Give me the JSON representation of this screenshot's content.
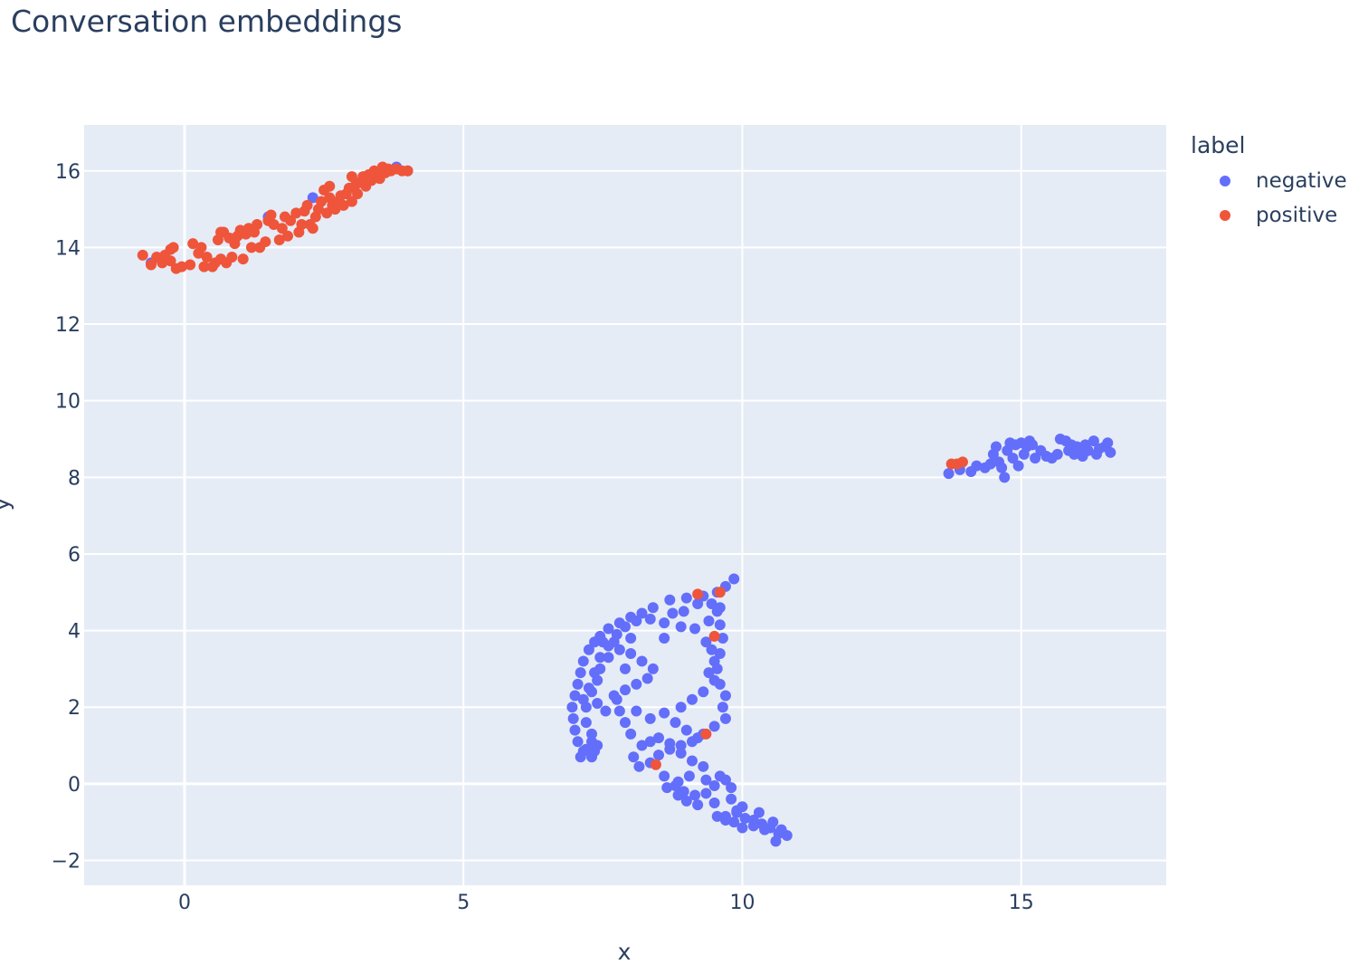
{
  "chart_data": {
    "type": "scatter",
    "title": "Conversation embeddings",
    "xlabel": "x",
    "ylabel": "y",
    "xlim": [
      -1.8,
      17.6
    ],
    "ylim": [
      -2.65,
      17.2
    ],
    "xticks": [
      0,
      5,
      10,
      15
    ],
    "yticks": [
      -2,
      0,
      2,
      4,
      6,
      8,
      10,
      12,
      14,
      16
    ],
    "ytick_labels": [
      "−2",
      "0",
      "2",
      "4",
      "6",
      "8",
      "10",
      "12",
      "14",
      "16"
    ],
    "legend_title": "label",
    "legend_position": "right",
    "plot_background": "#e5ecf6",
    "series": [
      {
        "name": "negative",
        "color": "#636efa",
        "points": [
          [
            -0.6,
            13.6
          ],
          [
            1.5,
            14.8
          ],
          [
            2.3,
            15.3
          ],
          [
            3.8,
            16.1
          ],
          [
            4.0,
            16.0
          ],
          [
            13.7,
            8.1
          ],
          [
            13.9,
            8.2
          ],
          [
            14.1,
            8.15
          ],
          [
            14.2,
            8.3
          ],
          [
            14.35,
            8.25
          ],
          [
            14.45,
            8.35
          ],
          [
            14.5,
            8.6
          ],
          [
            14.55,
            8.8
          ],
          [
            14.6,
            8.4
          ],
          [
            14.65,
            8.25
          ],
          [
            14.7,
            8.0
          ],
          [
            14.75,
            8.7
          ],
          [
            14.8,
            8.9
          ],
          [
            14.85,
            8.5
          ],
          [
            14.9,
            8.85
          ],
          [
            14.95,
            8.3
          ],
          [
            15.0,
            8.9
          ],
          [
            15.05,
            8.6
          ],
          [
            15.1,
            8.8
          ],
          [
            15.15,
            8.95
          ],
          [
            15.2,
            8.85
          ],
          [
            15.25,
            8.5
          ],
          [
            15.35,
            8.7
          ],
          [
            15.45,
            8.55
          ],
          [
            15.55,
            8.5
          ],
          [
            15.65,
            8.6
          ],
          [
            15.7,
            9.0
          ],
          [
            15.8,
            8.95
          ],
          [
            15.85,
            8.7
          ],
          [
            15.9,
            8.85
          ],
          [
            15.95,
            8.6
          ],
          [
            16.0,
            8.8
          ],
          [
            16.05,
            8.7
          ],
          [
            16.1,
            8.55
          ],
          [
            16.15,
            8.85
          ],
          [
            16.2,
            8.7
          ],
          [
            16.3,
            8.95
          ],
          [
            16.35,
            8.6
          ],
          [
            16.4,
            8.75
          ],
          [
            16.5,
            8.8
          ],
          [
            16.55,
            8.9
          ],
          [
            16.6,
            8.65
          ],
          [
            9.85,
            5.35
          ],
          [
            9.7,
            5.15
          ],
          [
            9.55,
            5.0
          ],
          [
            9.3,
            4.9
          ],
          [
            9.0,
            4.85
          ],
          [
            8.7,
            4.8
          ],
          [
            8.4,
            4.6
          ],
          [
            8.2,
            4.45
          ],
          [
            8.0,
            4.35
          ],
          [
            7.8,
            4.2
          ],
          [
            7.6,
            4.05
          ],
          [
            7.45,
            3.85
          ],
          [
            7.35,
            3.7
          ],
          [
            7.25,
            3.5
          ],
          [
            7.15,
            3.2
          ],
          [
            7.1,
            2.9
          ],
          [
            7.05,
            2.6
          ],
          [
            7.0,
            2.3
          ],
          [
            6.95,
            2.0
          ],
          [
            6.97,
            1.7
          ],
          [
            7.0,
            1.4
          ],
          [
            7.05,
            1.1
          ],
          [
            7.15,
            0.85
          ],
          [
            7.3,
            0.7
          ],
          [
            7.4,
            1.0
          ],
          [
            7.3,
            1.3
          ],
          [
            7.2,
            1.6
          ],
          [
            7.15,
            2.2
          ],
          [
            7.25,
            2.5
          ],
          [
            7.35,
            2.9
          ],
          [
            7.45,
            3.3
          ],
          [
            7.6,
            3.6
          ],
          [
            7.75,
            3.9
          ],
          [
            7.9,
            4.1
          ],
          [
            8.1,
            4.25
          ],
          [
            8.35,
            4.3
          ],
          [
            8.6,
            4.2
          ],
          [
            8.9,
            4.1
          ],
          [
            9.15,
            4.05
          ],
          [
            9.4,
            4.25
          ],
          [
            9.55,
            4.5
          ],
          [
            9.6,
            4.15
          ],
          [
            9.65,
            3.8
          ],
          [
            9.6,
            3.4
          ],
          [
            9.55,
            3.0
          ],
          [
            9.6,
            2.6
          ],
          [
            9.7,
            2.3
          ],
          [
            9.65,
            2.0
          ],
          [
            9.7,
            1.7
          ],
          [
            9.5,
            1.5
          ],
          [
            9.3,
            1.3
          ],
          [
            9.1,
            1.1
          ],
          [
            8.9,
            1.0
          ],
          [
            8.7,
            0.9
          ],
          [
            8.5,
            0.75
          ],
          [
            8.35,
            0.55
          ],
          [
            8.15,
            0.45
          ],
          [
            8.05,
            0.7
          ],
          [
            8.2,
            1.0
          ],
          [
            8.0,
            1.3
          ],
          [
            7.9,
            1.6
          ],
          [
            7.8,
            1.9
          ],
          [
            7.75,
            2.2
          ],
          [
            7.9,
            2.45
          ],
          [
            8.1,
            2.6
          ],
          [
            8.3,
            2.75
          ],
          [
            8.4,
            3.0
          ],
          [
            8.2,
            3.2
          ],
          [
            8.0,
            3.4
          ],
          [
            7.8,
            3.5
          ],
          [
            7.6,
            3.3
          ],
          [
            7.45,
            3.0
          ],
          [
            7.4,
            2.7
          ],
          [
            7.3,
            2.4
          ],
          [
            7.2,
            2.0
          ],
          [
            7.4,
            2.1
          ],
          [
            7.55,
            1.9
          ],
          [
            7.7,
            2.3
          ],
          [
            8.5,
            1.2
          ],
          [
            8.7,
            1.05
          ],
          [
            8.9,
            0.8
          ],
          [
            9.1,
            0.6
          ],
          [
            9.3,
            0.45
          ],
          [
            9.05,
            0.2
          ],
          [
            8.85,
            0.05
          ],
          [
            8.6,
            0.2
          ],
          [
            8.65,
            -0.1
          ],
          [
            8.85,
            -0.3
          ],
          [
            9.0,
            -0.45
          ],
          [
            9.2,
            -0.55
          ],
          [
            9.35,
            -0.25
          ],
          [
            9.5,
            -0.05
          ],
          [
            9.7,
            0.1
          ],
          [
            9.8,
            -0.1
          ],
          [
            9.5,
            -0.5
          ],
          [
            9.7,
            -0.85
          ],
          [
            9.9,
            -0.75
          ],
          [
            10.05,
            -0.9
          ],
          [
            10.2,
            -0.95
          ],
          [
            10.35,
            -1.05
          ],
          [
            10.5,
            -1.15
          ],
          [
            10.65,
            -1.3
          ],
          [
            10.8,
            -1.35
          ],
          [
            10.6,
            -1.5
          ],
          [
            10.4,
            -1.2
          ],
          [
            10.2,
            -1.1
          ],
          [
            10.0,
            -1.15
          ],
          [
            9.85,
            -1.0
          ],
          [
            9.7,
            -0.95
          ],
          [
            9.55,
            -0.85
          ],
          [
            9.9,
            -0.7
          ],
          [
            8.75,
            4.45
          ],
          [
            8.95,
            4.5
          ],
          [
            9.2,
            4.7
          ],
          [
            9.45,
            4.7
          ],
          [
            9.6,
            4.6
          ],
          [
            9.35,
            3.7
          ],
          [
            9.45,
            3.5
          ],
          [
            9.5,
            3.2
          ],
          [
            9.4,
            2.9
          ],
          [
            9.5,
            2.7
          ],
          [
            9.3,
            2.4
          ],
          [
            9.1,
            2.2
          ],
          [
            8.9,
            2.0
          ],
          [
            8.6,
            1.85
          ],
          [
            8.35,
            1.7
          ],
          [
            8.1,
            1.9
          ],
          [
            7.7,
            3.7
          ],
          [
            7.5,
            3.7
          ],
          [
            7.3,
            1.1
          ],
          [
            7.2,
            0.9
          ],
          [
            7.1,
            0.7
          ],
          [
            7.35,
            0.85
          ],
          [
            8.8,
            1.6
          ],
          [
            9.0,
            1.4
          ],
          [
            9.2,
            1.2
          ],
          [
            8.6,
            3.8
          ],
          [
            8.0,
            3.8
          ],
          [
            7.9,
            3.0
          ],
          [
            8.35,
            1.1
          ],
          [
            8.8,
            -0.05
          ],
          [
            8.95,
            -0.2
          ],
          [
            9.15,
            -0.3
          ],
          [
            9.35,
            0.1
          ],
          [
            9.6,
            0.2
          ],
          [
            9.8,
            -0.4
          ],
          [
            10.0,
            -0.6
          ],
          [
            10.3,
            -0.75
          ],
          [
            10.55,
            -1.0
          ],
          [
            10.7,
            -1.2
          ]
        ]
      },
      {
        "name": "positive",
        "color": "#ef553b",
        "points": [
          [
            -0.75,
            13.8
          ],
          [
            -0.6,
            13.55
          ],
          [
            -0.5,
            13.75
          ],
          [
            -0.4,
            13.6
          ],
          [
            -0.35,
            13.8
          ],
          [
            -0.25,
            13.65
          ],
          [
            -0.15,
            13.45
          ],
          [
            -0.05,
            13.5
          ],
          [
            -0.25,
            13.95
          ],
          [
            -0.2,
            14.0
          ],
          [
            0.15,
            14.1
          ],
          [
            0.25,
            13.85
          ],
          [
            0.3,
            14.0
          ],
          [
            0.4,
            13.75
          ],
          [
            0.5,
            13.5
          ],
          [
            0.55,
            13.6
          ],
          [
            0.65,
            13.7
          ],
          [
            0.75,
            13.6
          ],
          [
            0.85,
            13.75
          ],
          [
            0.6,
            14.2
          ],
          [
            0.7,
            14.4
          ],
          [
            0.8,
            14.25
          ],
          [
            0.65,
            14.4
          ],
          [
            0.9,
            14.1
          ],
          [
            0.95,
            14.3
          ],
          [
            1.05,
            13.7
          ],
          [
            1.0,
            14.45
          ],
          [
            1.1,
            14.35
          ],
          [
            1.15,
            14.5
          ],
          [
            1.25,
            14.4
          ],
          [
            1.3,
            14.6
          ],
          [
            1.35,
            14.0
          ],
          [
            1.45,
            14.15
          ],
          [
            1.5,
            14.7
          ],
          [
            1.55,
            14.85
          ],
          [
            1.6,
            14.6
          ],
          [
            1.7,
            14.2
          ],
          [
            1.75,
            14.5
          ],
          [
            1.8,
            14.8
          ],
          [
            1.85,
            14.3
          ],
          [
            1.9,
            14.7
          ],
          [
            2.0,
            14.9
          ],
          [
            2.05,
            14.4
          ],
          [
            2.1,
            14.6
          ],
          [
            2.15,
            14.95
          ],
          [
            2.2,
            15.1
          ],
          [
            2.25,
            14.6
          ],
          [
            2.35,
            14.8
          ],
          [
            2.4,
            15.0
          ],
          [
            2.45,
            15.2
          ],
          [
            2.5,
            15.5
          ],
          [
            2.55,
            14.9
          ],
          [
            2.6,
            15.3
          ],
          [
            2.65,
            15.1
          ],
          [
            2.7,
            15.0
          ],
          [
            2.75,
            15.2
          ],
          [
            2.8,
            15.35
          ],
          [
            2.85,
            15.1
          ],
          [
            2.9,
            15.4
          ],
          [
            2.95,
            15.55
          ],
          [
            3.0,
            15.2
          ],
          [
            3.05,
            15.6
          ],
          [
            3.1,
            15.4
          ],
          [
            3.15,
            15.7
          ],
          [
            3.2,
            15.85
          ],
          [
            3.25,
            15.6
          ],
          [
            3.3,
            15.9
          ],
          [
            3.35,
            15.75
          ],
          [
            3.4,
            16.0
          ],
          [
            3.45,
            15.9
          ],
          [
            3.5,
            15.8
          ],
          [
            3.55,
            16.1
          ],
          [
            3.6,
            15.95
          ],
          [
            3.65,
            16.05
          ],
          [
            3.7,
            16.0
          ],
          [
            3.8,
            16.05
          ],
          [
            3.9,
            16.0
          ],
          [
            4.0,
            16.0
          ],
          [
            0.35,
            13.5
          ],
          [
            0.1,
            13.55
          ],
          [
            1.2,
            14.0
          ],
          [
            2.3,
            14.5
          ],
          [
            2.6,
            15.6
          ],
          [
            3.0,
            15.85
          ],
          [
            13.75,
            8.35
          ],
          [
            13.85,
            8.35
          ],
          [
            13.95,
            8.4
          ]
        ]
      }
    ],
    "extra_positive_in_negative_cluster": [
      [
        9.2,
        4.95
      ],
      [
        9.6,
        5.0
      ],
      [
        9.5,
        3.85
      ],
      [
        9.35,
        1.3
      ],
      [
        8.45,
        0.5
      ]
    ]
  }
}
